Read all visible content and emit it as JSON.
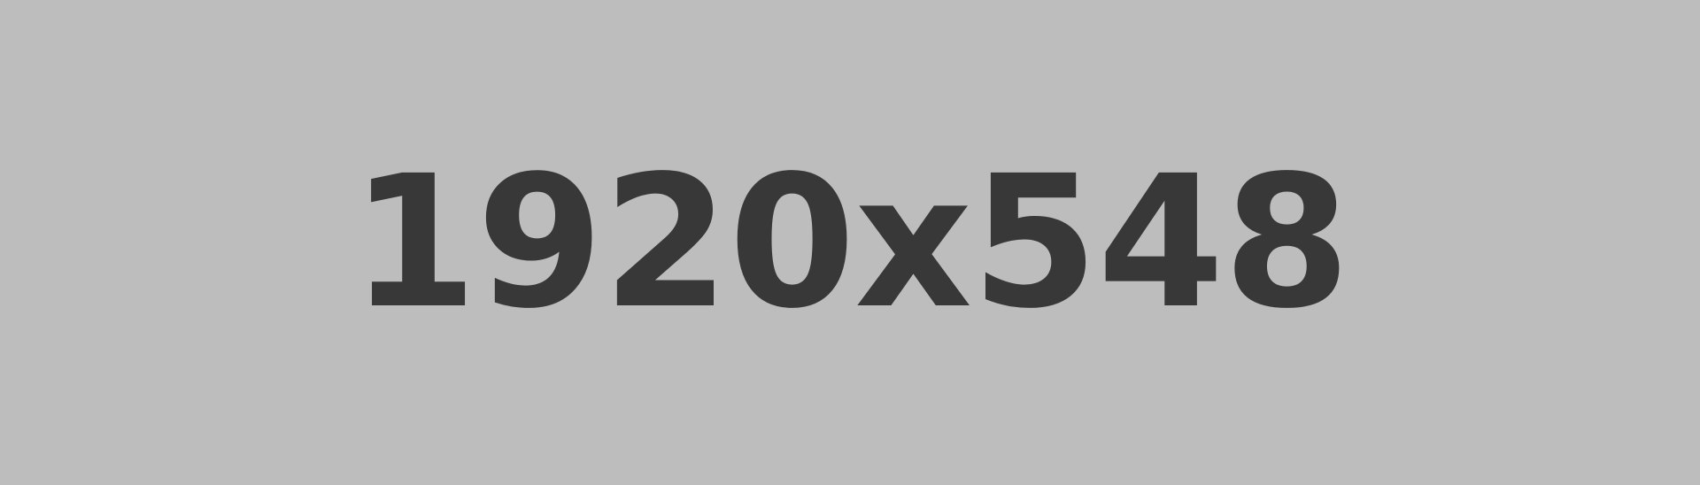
{
  "placeholder": {
    "label": "1920x548",
    "background_color": "#bdbdbd",
    "text_color": "#383838"
  }
}
